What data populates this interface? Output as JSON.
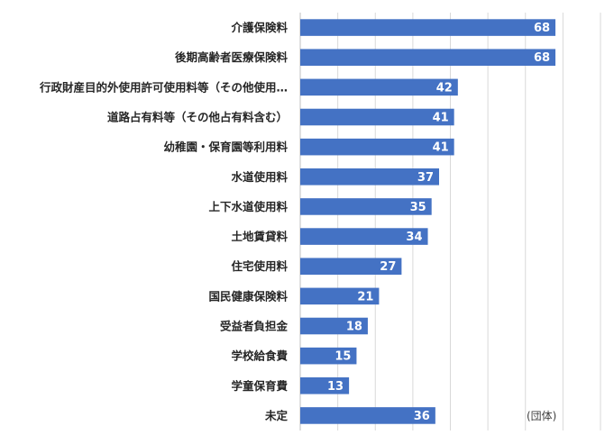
{
  "chart_data": {
    "type": "bar",
    "orientation": "horizontal",
    "title": "",
    "xlabel": "",
    "ylabel": "",
    "unit": "(団体)",
    "xlim": [
      0,
      80
    ],
    "grid": true,
    "bar_color": "#4472c4",
    "categories": [
      "介護保険料",
      "後期高齢者医療保険料",
      "行政財産目的外使用許可使用料等（その他使用…",
      "道路占有料等（その他占有料含む）",
      "幼稚園・保育園等利用料",
      "水道使用料",
      "上下水道使用料",
      "土地賃貸料",
      "住宅使用料",
      "国民健康保険料",
      "受益者負担金",
      "学校給食費",
      "学童保育費",
      "未定"
    ],
    "values": [
      68,
      68,
      42,
      41,
      41,
      37,
      35,
      34,
      27,
      21,
      18,
      15,
      13,
      36
    ]
  }
}
